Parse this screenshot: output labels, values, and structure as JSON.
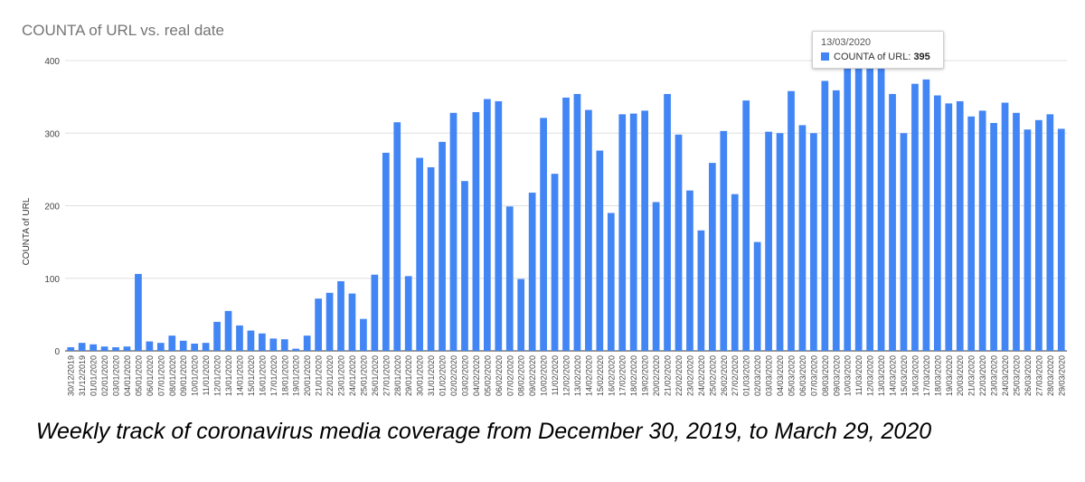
{
  "chart_data": {
    "type": "bar",
    "title": "COUNTA of URL vs. real date",
    "xlabel": "",
    "ylabel": "COUNTA of URL",
    "ylim": [
      0,
      400
    ],
    "yticks": [
      "0",
      "100",
      "200",
      "300",
      "400"
    ],
    "grid": true,
    "bar_color": "#4285f4",
    "categories": [
      "30/12/2019",
      "31/12/2019",
      "01/01/2020",
      "02/01/2020",
      "03/01/2020",
      "04/01/2020",
      "05/01/2020",
      "06/01/2020",
      "07/01/2020",
      "08/01/2020",
      "09/01/2020",
      "10/01/2020",
      "11/01/2020",
      "12/01/2020",
      "13/01/2020",
      "14/01/2020",
      "15/01/2020",
      "16/01/2020",
      "17/01/2020",
      "18/01/2020",
      "19/01/2020",
      "20/01/2020",
      "21/01/2020",
      "22/01/2020",
      "23/01/2020",
      "24/01/2020",
      "25/01/2020",
      "26/01/2020",
      "27/01/2020",
      "28/01/2020",
      "29/01/2020",
      "30/01/2020",
      "31/01/2020",
      "01/02/2020",
      "02/02/2020",
      "03/02/2020",
      "04/02/2020",
      "05/02/2020",
      "06/02/2020",
      "07/02/2020",
      "08/02/2020",
      "09/02/2020",
      "10/02/2020",
      "11/02/2020",
      "12/02/2020",
      "13/02/2020",
      "14/02/2020",
      "15/02/2020",
      "16/02/2020",
      "17/02/2020",
      "18/02/2020",
      "19/02/2020",
      "20/02/2020",
      "21/02/2020",
      "22/02/2020",
      "23/02/2020",
      "24/02/2020",
      "25/02/2020",
      "26/02/2020",
      "27/02/2020",
      "01/03/2020",
      "02/03/2020",
      "03/03/2020",
      "04/03/2020",
      "05/03/2020",
      "06/03/2020",
      "07/03/2020",
      "08/03/2020",
      "09/03/2020",
      "10/03/2020",
      "11/03/2020",
      "12/03/2020",
      "13/03/2020",
      "14/03/2020",
      "15/03/2020",
      "16/03/2020",
      "17/03/2020",
      "18/03/2020",
      "19/03/2020",
      "20/03/2020",
      "21/03/2020",
      "22/03/2020",
      "23/03/2020",
      "24/03/2020",
      "25/03/2020",
      "26/03/2020",
      "27/03/2020",
      "28/03/2020",
      "29/03/2020"
    ],
    "series": [
      {
        "values": [
          5,
          11,
          9,
          6,
          5,
          6,
          106,
          13,
          11,
          21,
          14,
          10,
          11,
          40,
          55,
          35,
          28,
          24,
          17,
          16,
          3,
          21,
          72,
          80,
          96,
          79,
          44,
          105,
          273,
          315,
          103,
          266,
          253,
          288,
          328,
          234,
          329,
          347,
          344,
          199,
          99,
          218,
          321,
          244,
          349,
          354,
          332,
          276,
          190,
          326,
          327,
          331,
          205,
          354,
          298,
          221,
          166,
          259,
          303,
          216,
          345,
          150,
          302,
          300,
          358,
          311,
          300,
          372,
          359,
          395,
          395,
          395,
          395,
          354,
          300,
          368,
          374,
          352,
          341,
          344,
          323,
          331,
          314,
          342,
          328,
          305,
          318,
          326,
          306
        ]
      }
    ],
    "tooltip": {
      "date": "13/03/2020",
      "series_label": "COUNTA of URL:",
      "value": "395"
    }
  },
  "caption": "Weekly track of coronavirus media coverage from December 30, 2019, to March 29, 2020"
}
